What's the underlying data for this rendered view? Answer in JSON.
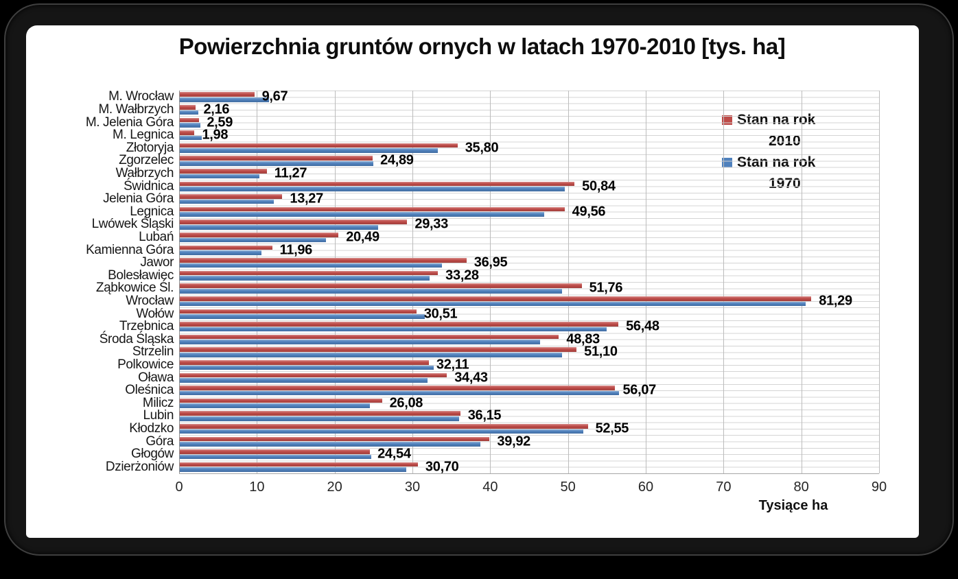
{
  "window": {
    "background_color": "#000000",
    "frame_border_color": "#3f3f3f",
    "panel_background": "#ffffff"
  },
  "chart_data": {
    "type": "bar",
    "orientation": "horizontal",
    "title": "Powierzchnia gruntów ornych w latach 1970-2010 [tys. ha]",
    "xlabel": "Tysiące ha",
    "xlim": [
      0,
      90
    ],
    "x_ticks": [
      0,
      10,
      20,
      30,
      40,
      50,
      60,
      70,
      80,
      90
    ],
    "grid": {
      "vertical_gridlines": true,
      "horizontal_stripe_lines": true
    },
    "legend_position": "inside-top-right",
    "gridline_color": "#bcbcbc",
    "categories": [
      "M. Wrocław",
      "M. Wałbrzych",
      "M. Jelenia Góra",
      "M. Legnica",
      "Złotoryja",
      "Zgorzelec",
      "Wałbrzych",
      "Świdnica",
      "Jelenia Góra",
      "Legnica",
      "Lwówek Śląski",
      "Lubań",
      "Kamienna Góra",
      "Jawor",
      "Bolesławiec",
      "Ząbkowice Śl.",
      "Wrocław",
      "Wołów",
      "Trzebnica",
      "Środa Śląska",
      "Strzelin",
      "Polkowice",
      "Oława",
      "Oleśnica",
      "Milicz",
      "Lubin",
      "Kłodzko",
      "Góra",
      "Głogów",
      "Dzierżoniów"
    ],
    "series": [
      {
        "name": "Stan na rok 2010",
        "name_lines": [
          "Stan na rok",
          "2010"
        ],
        "color": "#be4b48",
        "values": [
          9.67,
          2.16,
          2.59,
          1.98,
          35.8,
          24.89,
          11.27,
          50.84,
          13.27,
          49.56,
          29.33,
          20.49,
          11.96,
          36.95,
          33.28,
          51.76,
          81.29,
          30.51,
          56.48,
          48.83,
          51.1,
          32.11,
          34.43,
          56.07,
          26.08,
          36.15,
          52.55,
          39.92,
          24.54,
          30.7
        ],
        "labels": [
          "9,67",
          "2,16",
          "2,59",
          "1,98",
          "35,80",
          "24,89",
          "11,27",
          "50,84",
          "13,27",
          "49,56",
          "29,33",
          "20,49",
          "11,96",
          "36,95",
          "33,28",
          "51,76",
          "81,29",
          "30,51",
          "56,48",
          "48,83",
          "51,10",
          "32,11",
          "34,43",
          "56,07",
          "26,08",
          "36,15",
          "52,55",
          "39,92",
          "24,54",
          "30,70"
        ],
        "labels_visible": true
      },
      {
        "name": "Stan na rok 1970",
        "name_lines": [
          "Stan na rok",
          "1970"
        ],
        "color": "#4f81bd",
        "values_estimated_from_pixels": true,
        "values": [
          11.6,
          2.5,
          2.7,
          2.9,
          33.3,
          25.0,
          10.3,
          49.6,
          12.2,
          46.9,
          25.6,
          18.9,
          10.6,
          33.8,
          32.2,
          49.2,
          80.6,
          31.6,
          55.0,
          46.4,
          49.2,
          32.7,
          31.9,
          56.6,
          24.5,
          36.0,
          52.0,
          38.7,
          24.7,
          29.2
        ],
        "labels_visible": false
      }
    ]
  }
}
